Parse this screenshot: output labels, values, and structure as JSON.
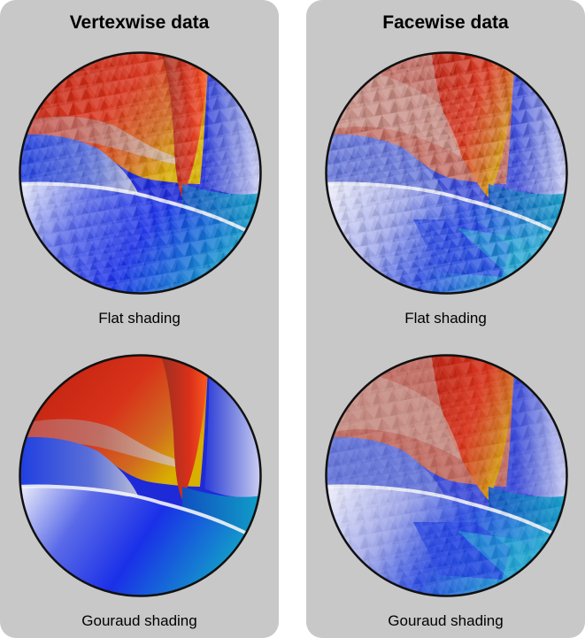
{
  "panels": [
    {
      "title": "Vertexwise data",
      "captions": [
        "Flat shading",
        "Gouraud shading"
      ]
    },
    {
      "title": "Facewise data",
      "captions": [
        "Flat shading",
        "Gouraud shading"
      ]
    }
  ],
  "colors": {
    "panel_background": "#c8c8c8",
    "red": "#d42a10",
    "yellow": "#d9b400",
    "blue": "#1f3ee0",
    "cyan": "#1ab0c8",
    "white": "#f2f2f8"
  }
}
